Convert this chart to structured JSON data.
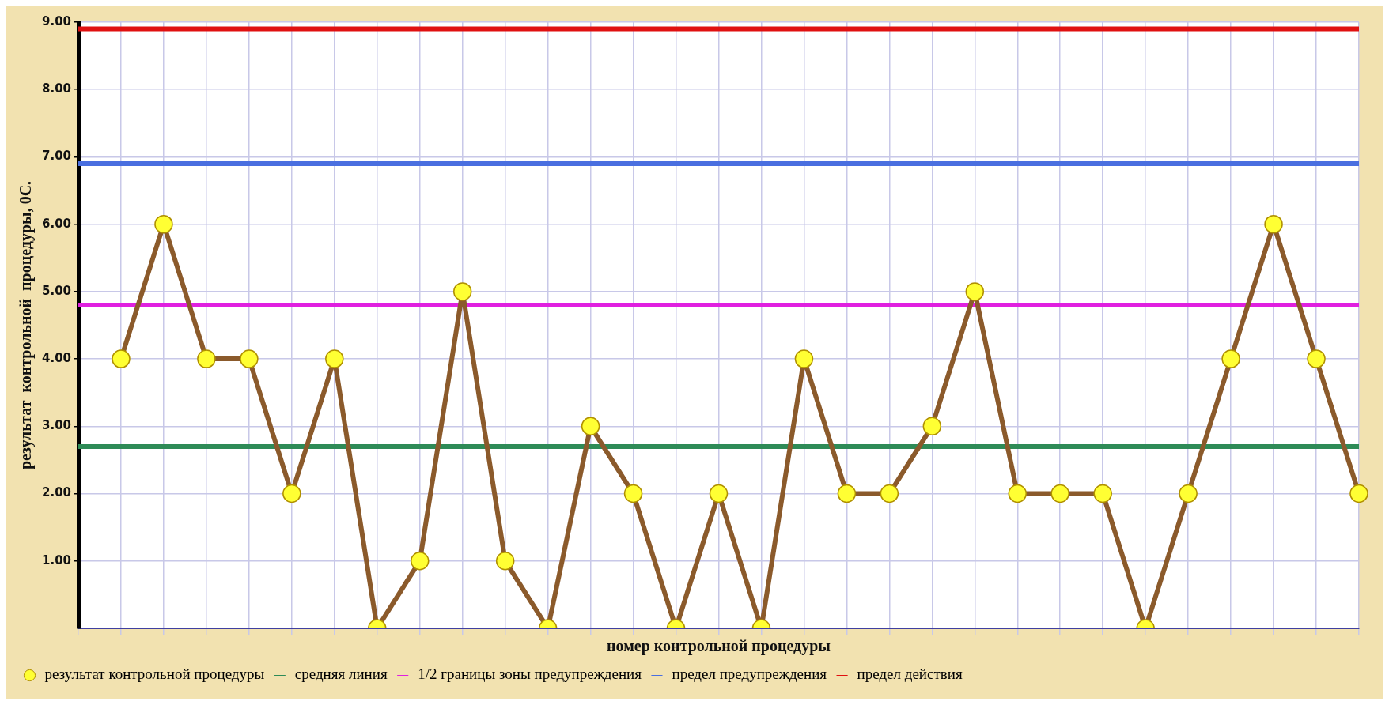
{
  "chart_data": {
    "type": "line",
    "xlabel": "номер контрольной процедуры",
    "ylabel": "результат  контрольной  процедуры, 0С.",
    "categories": [
      null,
      null,
      null,
      null,
      null,
      null,
      null,
      null,
      null,
      null,
      null,
      null,
      null,
      null,
      null,
      null,
      null,
      null,
      null,
      null,
      null,
      null,
      null,
      null,
      null,
      null,
      null,
      null,
      null,
      null,
      null
    ],
    "series": [
      {
        "name": "результат контрольной процедуры",
        "color": "#8b5a2b",
        "marker": "circle",
        "colors": [
          "#ffff33",
          "#ffff33",
          "#ffff33",
          "#ffff33",
          "#ffff33",
          "#ffff33",
          "#ffff33",
          "#ffff33",
          "#ffff33",
          "#ffff33",
          "#ffff33",
          "#ffff33",
          "#ffff33",
          "#ffff33",
          "#ffff33",
          "#ffff33",
          "#ffff33",
          "#ffff33",
          "#ffff33",
          "#ffff33",
          "#ffff33",
          "#ffff33",
          "#ffff33",
          "#ffff33",
          "#ffff33",
          "#ffff33",
          "#ffff33",
          "#ffff33",
          "#ffff33",
          "#ffff33",
          "#ffff33"
        ],
        "values": [
          null,
          4,
          6,
          4,
          4,
          2,
          4,
          0,
          1,
          5,
          1,
          0,
          3,
          2,
          0,
          2,
          0,
          4,
          2,
          2,
          3,
          5,
          2,
          2,
          2,
          0,
          2,
          4,
          6,
          4,
          2
        ]
      },
      {
        "name": "средняя линия",
        "color": "#2e8b57",
        "values": [
          2.7,
          2.7,
          2.7,
          2.7,
          2.7,
          2.7,
          2.7,
          2.7,
          2.7,
          2.7,
          2.7,
          2.7,
          2.7,
          2.7,
          2.7,
          2.7,
          2.7,
          2.7,
          2.7,
          2.7,
          2.7,
          2.7,
          2.7,
          2.7,
          2.7,
          2.7,
          2.7,
          2.7,
          2.7,
          2.7,
          2.7
        ]
      },
      {
        "name": "1/2 границы зоны предупреждения",
        "color": "#e020e0",
        "values": [
          4.8,
          4.8,
          4.8,
          4.8,
          4.8,
          4.8,
          4.8,
          4.8,
          4.8,
          4.8,
          4.8,
          4.8,
          4.8,
          4.8,
          4.8,
          4.8,
          4.8,
          4.8,
          4.8,
          4.8,
          4.8,
          4.8,
          4.8,
          4.8,
          4.8,
          4.8,
          4.8,
          4.8,
          4.8,
          4.8,
          4.8
        ]
      },
      {
        "name": "предел предупреждения",
        "color": "#4a6fe0",
        "values": [
          6.9,
          6.9,
          6.9,
          6.9,
          6.9,
          6.9,
          6.9,
          6.9,
          6.9,
          6.9,
          6.9,
          6.9,
          6.9,
          6.9,
          6.9,
          6.9,
          6.9,
          6.9,
          6.9,
          6.9,
          6.9,
          6.9,
          6.9,
          6.9,
          6.9,
          6.9,
          6.9,
          6.9,
          6.9,
          6.9,
          6.9
        ]
      },
      {
        "name": "предел действия",
        "color": "#e01010",
        "values": [
          8.9,
          8.9,
          8.9,
          8.9,
          8.9,
          8.9,
          8.9,
          8.9,
          8.9,
          8.9,
          8.9,
          8.9,
          8.9,
          8.9,
          8.9,
          8.9,
          8.9,
          8.9,
          8.9,
          8.9,
          8.9,
          8.9,
          8.9,
          8.9,
          8.9,
          8.9,
          8.9,
          8.9,
          8.9,
          8.9,
          8.9
        ]
      }
    ],
    "ylim": [
      0,
      9
    ],
    "yticks": [
      {
        "value": 1,
        "label": "1.00"
      },
      {
        "value": 2,
        "label": "2.00"
      },
      {
        "value": 3,
        "label": "3.00"
      },
      {
        "value": 4,
        "label": "4.00"
      },
      {
        "value": 5,
        "label": "5.00"
      },
      {
        "value": 6,
        "label": "6.00"
      },
      {
        "value": 7,
        "label": "7.00"
      },
      {
        "value": 8,
        "label": "8.00"
      },
      {
        "value": 9,
        "label": "9.00"
      }
    ],
    "tick_labels": "y",
    "grid": true,
    "legend": "bottom",
    "marker": "none",
    "line_style": "solid"
  }
}
